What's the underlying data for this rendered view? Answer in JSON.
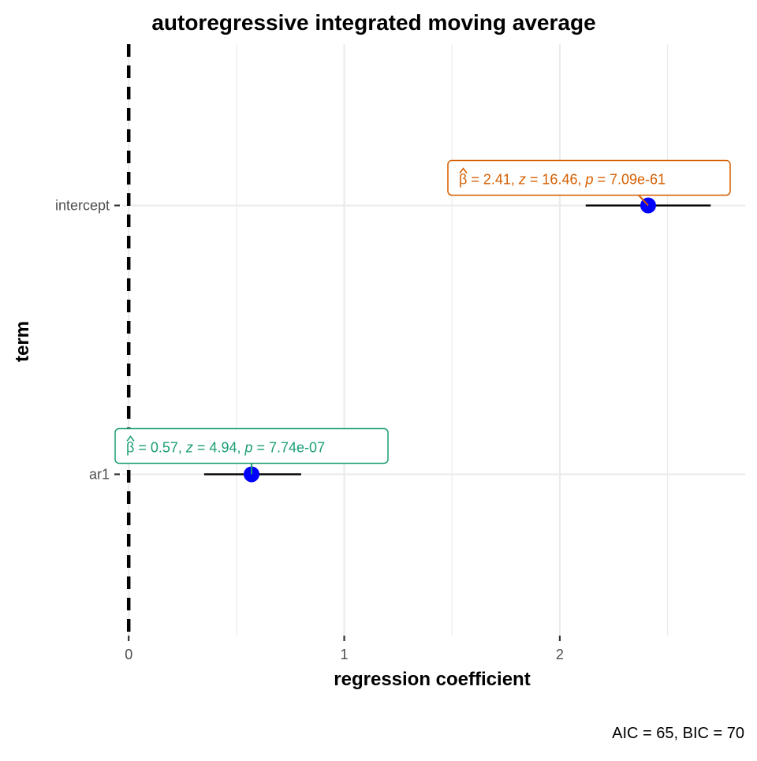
{
  "chart_data": {
    "type": "forest",
    "title": "autoregressive integrated moving average",
    "xlabel": "regression coefficient",
    "ylabel": "term",
    "caption": "AIC = 65, BIC = 70",
    "xlim": [
      -0.03,
      2.86
    ],
    "x_ticks": [
      "0",
      "1",
      "2"
    ],
    "x_tick_values": [
      0,
      1,
      2
    ],
    "reference_line": 0,
    "grid": true,
    "point_color": "#0000ff",
    "terms": [
      {
        "name": "intercept",
        "estimate": 2.41,
        "conf_low": 2.12,
        "conf_high": 2.7,
        "color": "#d55e00",
        "beta": "2.41",
        "z": "16.46",
        "p": "7.09e-61"
      },
      {
        "name": "ar1",
        "estimate": 0.57,
        "conf_low": 0.35,
        "conf_high": 0.8,
        "color": "#1b9e77",
        "beta": "0.57",
        "z": "4.94",
        "p": "7.74e-07"
      }
    ],
    "label_tokens": {
      "beta_symbol": "β",
      "z_symbol": "z",
      "p_symbol": "p",
      "equals": " = ",
      "separator": ",  "
    }
  }
}
